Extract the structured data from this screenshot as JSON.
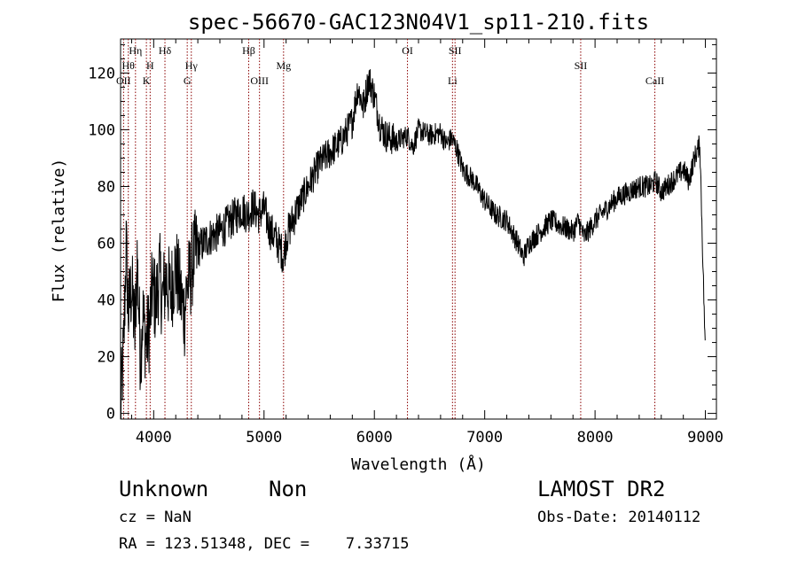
{
  "chart_data": {
    "type": "line",
    "title": "spec-56670-GAC123N04V1_sp11-210.fits",
    "xlabel": "Wavelength (Å)",
    "ylabel": "Flux (relative)",
    "xlim": [
      3700,
      9100
    ],
    "ylim": [
      -2,
      132
    ],
    "xticks": [
      4000,
      5000,
      6000,
      7000,
      8000,
      9000
    ],
    "yticks": [
      0,
      20,
      40,
      60,
      80,
      100,
      120
    ],
    "grid": false,
    "line_color": "#000000",
    "marker_color": "#8b0000",
    "series": [
      {
        "x": [
          3700,
          3730,
          3750,
          3770,
          3800,
          3830,
          3850,
          3880,
          3900,
          3930,
          3960,
          3990,
          4020,
          4050,
          4080,
          4110,
          4150,
          4200,
          4250,
          4280,
          4300,
          4330,
          4360,
          4400,
          4450,
          4500,
          4600,
          4700,
          4800,
          4850,
          4900,
          4950,
          5000,
          5050,
          5100,
          5150,
          5180,
          5200,
          5300,
          5400,
          5500,
          5600,
          5700,
          5800,
          5850,
          5900,
          5950,
          6000,
          6050,
          6100,
          6200,
          6300,
          6350,
          6400,
          6500,
          6600,
          6650,
          6700,
          6750,
          6800,
          6900,
          7000,
          7100,
          7200,
          7300,
          7350,
          7400,
          7500,
          7600,
          7700,
          7800,
          7850,
          7900,
          8000,
          8100,
          8200,
          8300,
          8400,
          8500,
          8550,
          8600,
          8700,
          8800,
          8850,
          8900,
          8950,
          9000
        ],
        "y": [
          0,
          25,
          60,
          35,
          45,
          28,
          55,
          20,
          35,
          25,
          30,
          45,
          38,
          50,
          40,
          48,
          42,
          52,
          40,
          35,
          45,
          48,
          55,
          58,
          60,
          62,
          64,
          68,
          72,
          70,
          73,
          70,
          72,
          65,
          62,
          58,
          55,
          62,
          72,
          80,
          88,
          92,
          96,
          103,
          115,
          108,
          118,
          112,
          102,
          98,
          96,
          98,
          94,
          100,
          98,
          99,
          95,
          97,
          93,
          86,
          82,
          75,
          70,
          68,
          60,
          55,
          60,
          64,
          68,
          66,
          64,
          68,
          62,
          68,
          72,
          76,
          78,
          80,
          80,
          82,
          78,
          82,
          86,
          82,
          90,
          95,
          20
        ]
      }
    ],
    "lines": [
      {
        "wave": 3727,
        "label": "OII",
        "row": 3
      },
      {
        "wave": 3770,
        "label": "Hθ",
        "row": 2
      },
      {
        "wave": 3835,
        "label": "Hη",
        "row": 1
      },
      {
        "wave": 3934,
        "label": "K",
        "row": 3
      },
      {
        "wave": 3968,
        "label": "H",
        "row": 2
      },
      {
        "wave": 4102,
        "label": "Hδ",
        "row": 1
      },
      {
        "wave": 4304,
        "label": "G",
        "row": 3
      },
      {
        "wave": 4341,
        "label": "Hγ",
        "row": 2
      },
      {
        "wave": 4861,
        "label": "Hβ",
        "row": 1
      },
      {
        "wave": 4959,
        "label": "OIII",
        "row": 3
      },
      {
        "wave": 5177,
        "label": "Mg",
        "row": 2
      },
      {
        "wave": 6300,
        "label": "OI",
        "row": 1
      },
      {
        "wave": 6708,
        "label": "Li",
        "row": 3
      },
      {
        "wave": 6731,
        "label": "SII",
        "row": 1
      },
      {
        "wave": 7870,
        "label": "SII",
        "row": 2
      },
      {
        "wave": 8542,
        "label": "CaII",
        "row": 3
      }
    ]
  },
  "info": {
    "object_class": "Unknown",
    "subclass": "Non",
    "survey": "LAMOST DR2",
    "redshift": "cz = NaN",
    "obs_date": "Obs-Date: 20140112",
    "coords": "RA = 123.51348, DEC =    7.33715"
  }
}
